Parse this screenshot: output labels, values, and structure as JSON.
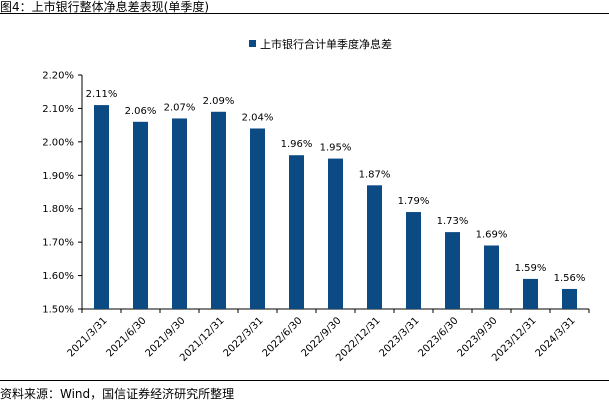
{
  "figure_title": "图4：上市银行整体净息差表现(单季度)",
  "source": "资料来源：Wind，国信证券经济研究所整理",
  "colors": {
    "bar": "#0b4a82",
    "axis": "#000000"
  },
  "chart_data": {
    "type": "bar",
    "categories": [
      "2021/3/31",
      "2021/6/30",
      "2021/9/30",
      "2021/12/31",
      "2022/3/31",
      "2022/6/30",
      "2022/9/30",
      "2022/12/31",
      "2023/3/31",
      "2023/6/30",
      "2023/9/30",
      "2023/12/31",
      "2024/3/31"
    ],
    "series": [
      {
        "name": "上市银行合计单季度净息差",
        "values": [
          2.11,
          2.06,
          2.07,
          2.09,
          2.04,
          1.96,
          1.95,
          1.87,
          1.79,
          1.73,
          1.69,
          1.59,
          1.56
        ],
        "labels": [
          "2.11%",
          "2.06%",
          "2.07%",
          "2.09%",
          "2.04%",
          "1.96%",
          "1.95%",
          "1.87%",
          "1.79%",
          "1.73%",
          "1.69%",
          "1.59%",
          "1.56%"
        ]
      }
    ],
    "ylim": [
      1.5,
      2.2
    ],
    "yticks": [
      "2.20%",
      "2.10%",
      "2.00%",
      "1.90%",
      "1.80%",
      "1.70%",
      "1.60%",
      "1.50%"
    ],
    "ytick_values": [
      2.2,
      2.1,
      2.0,
      1.9,
      1.8,
      1.7,
      1.6,
      1.5
    ],
    "legend_position": "top-center",
    "grid": false
  }
}
